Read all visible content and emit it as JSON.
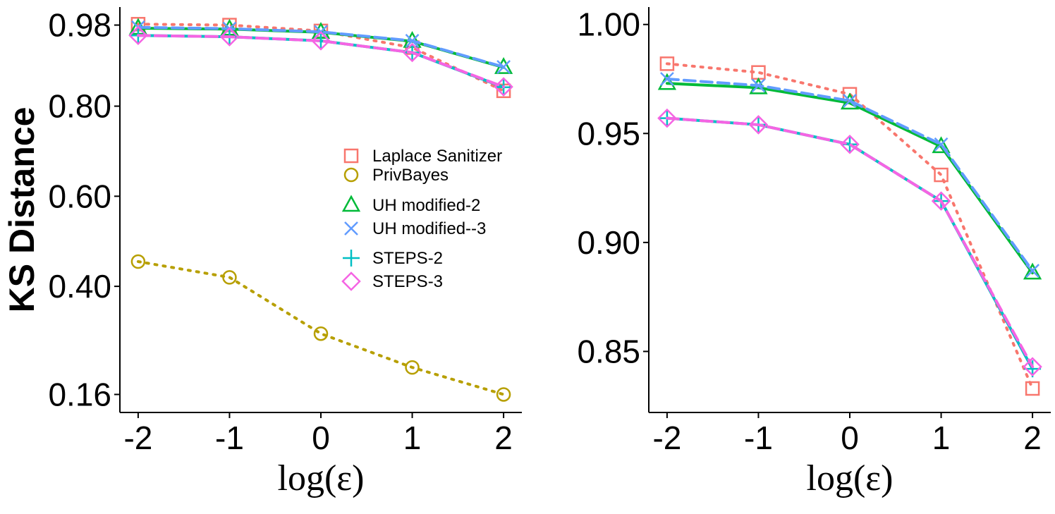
{
  "chart_data": [
    {
      "type": "line",
      "xlabel": "log(ε)",
      "ylabel": "KS Distance",
      "x": [
        -2,
        -1,
        0,
        1,
        2
      ],
      "xticks": [
        "-2",
        "-1",
        "0",
        "1",
        "2"
      ],
      "xlim": [
        -2.2,
        2.2
      ],
      "ylim": [
        0.12,
        1.02
      ],
      "yticks": [
        0.16,
        0.4,
        0.6,
        0.8,
        0.98
      ],
      "ytick_labels": [
        "0.16",
        "0.40",
        "0.60",
        "0.80",
        "0.98"
      ],
      "legend_position": "right",
      "series": [
        {
          "name": "Laplace Sanitizer",
          "color": "#F8766D",
          "line": "dotted",
          "marker": "square",
          "values": [
            0.982,
            0.98,
            0.967,
            0.93,
            0.834
          ]
        },
        {
          "name": "PrivBayes",
          "color": "#B79F00",
          "line": "dotted",
          "marker": "circle",
          "values": [
            0.455,
            0.42,
            0.295,
            0.22,
            0.16
          ]
        },
        {
          "name": "UH modified-2",
          "color": "#00BA38",
          "line": "solid",
          "marker": "triangle",
          "values": [
            0.973,
            0.971,
            0.964,
            0.944,
            0.886
          ]
        },
        {
          "name": "UH modified--3",
          "color": "#619CFF",
          "line": "dashed",
          "marker": "x",
          "values": [
            0.975,
            0.972,
            0.965,
            0.945,
            0.887
          ]
        },
        {
          "name": "STEPS-2",
          "color": "#00BFC4",
          "line": "solid",
          "marker": "plus",
          "values": [
            0.957,
            0.954,
            0.945,
            0.919,
            0.842
          ]
        },
        {
          "name": "STEPS-3",
          "color": "#F564E3",
          "line": "dashed",
          "marker": "diamond",
          "values": [
            0.957,
            0.954,
            0.945,
            0.919,
            0.843
          ]
        }
      ]
    },
    {
      "type": "line",
      "xlabel": "log(ε)",
      "ylabel": "",
      "x": [
        -2,
        -1,
        0,
        1,
        2
      ],
      "xticks": [
        "-2",
        "-1",
        "0",
        "1",
        "2"
      ],
      "xlim": [
        -2.2,
        2.2
      ],
      "ylim": [
        0.822,
        1.008
      ],
      "yticks": [
        0.85,
        0.9,
        0.95,
        1.0
      ],
      "ytick_labels": [
        "0.85",
        "0.90",
        "0.95",
        "1.00"
      ],
      "series": [
        {
          "name": "Laplace Sanitizer",
          "color": "#F8766D",
          "line": "dotted",
          "marker": "square",
          "values": [
            0.982,
            0.978,
            0.968,
            0.931,
            0.833
          ]
        },
        {
          "name": "UH modified-2",
          "color": "#00BA38",
          "line": "solid",
          "marker": "triangle",
          "values": [
            0.973,
            0.971,
            0.964,
            0.944,
            0.886
          ]
        },
        {
          "name": "UH modified--3",
          "color": "#619CFF",
          "line": "dashed",
          "marker": "x",
          "values": [
            0.975,
            0.972,
            0.965,
            0.945,
            0.887
          ]
        },
        {
          "name": "STEPS-2",
          "color": "#00BFC4",
          "line": "solid",
          "marker": "plus",
          "values": [
            0.957,
            0.954,
            0.945,
            0.919,
            0.842
          ]
        },
        {
          "name": "STEPS-3",
          "color": "#F564E3",
          "line": "dashed",
          "marker": "diamond",
          "values": [
            0.957,
            0.954,
            0.945,
            0.919,
            0.843
          ]
        }
      ]
    }
  ]
}
